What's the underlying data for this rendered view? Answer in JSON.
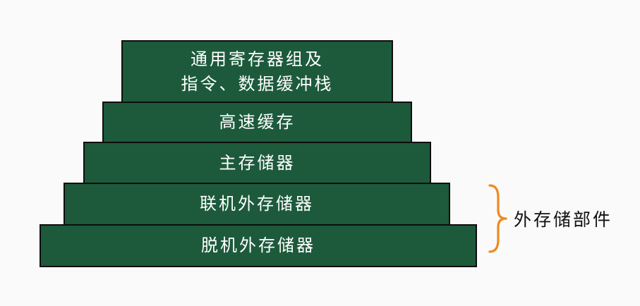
{
  "pyramid": {
    "tiers": [
      {
        "lines": [
          "通用寄存器组及",
          "指令、数据缓冲栈"
        ]
      },
      {
        "lines": [
          "高速缓存"
        ]
      },
      {
        "lines": [
          "主存储器"
        ]
      },
      {
        "lines": [
          "联机外存储器"
        ]
      },
      {
        "lines": [
          "脱机外存储器"
        ]
      }
    ]
  },
  "bracket": {
    "label": "外存储部件",
    "color": "#f08a1c"
  },
  "colors": {
    "tier_fill": "#1c5a3b",
    "tier_border": "#0e0e0e",
    "tier_text": "#ffffff"
  }
}
